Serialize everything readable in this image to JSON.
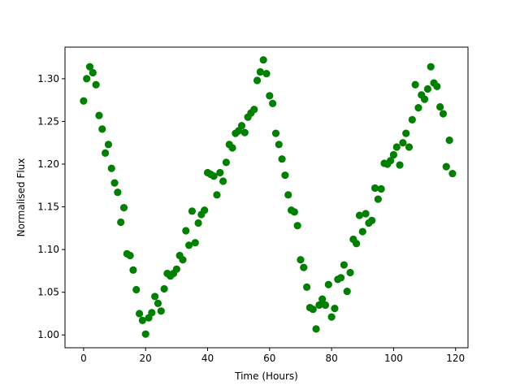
{
  "colors": {
    "marker": "#008000",
    "axis": "#000000",
    "background": "#ffffff"
  },
  "chart_data": {
    "type": "scatter",
    "title": "",
    "xlabel": "Time (Hours)",
    "ylabel": "Normalised Flux",
    "xlim": [
      -6,
      124
    ],
    "ylim": [
      0.985,
      1.337
    ],
    "grid": false,
    "legend": "none",
    "x_ticks": [
      0,
      20,
      40,
      60,
      80,
      100,
      120
    ],
    "x_tick_labels": [
      "0",
      "20",
      "40",
      "60",
      "80",
      "100",
      "120"
    ],
    "y_ticks": [
      1.0,
      1.05,
      1.1,
      1.15,
      1.2,
      1.25,
      1.3
    ],
    "y_tick_labels": [
      "1.00",
      "1.05",
      "1.10",
      "1.15",
      "1.20",
      "1.25",
      "1.30"
    ],
    "series": [
      {
        "marker": "circle",
        "color": "#008000",
        "points": [
          [
            0,
            1.274
          ],
          [
            1,
            1.3
          ],
          [
            2,
            1.314
          ],
          [
            3,
            1.307
          ],
          [
            4,
            1.293
          ],
          [
            5,
            1.257
          ],
          [
            6,
            1.241
          ],
          [
            7,
            1.213
          ],
          [
            8,
            1.223
          ],
          [
            9,
            1.195
          ],
          [
            10,
            1.178
          ],
          [
            11,
            1.167
          ],
          [
            12,
            1.132
          ],
          [
            13,
            1.149
          ],
          [
            14,
            1.095
          ],
          [
            15,
            1.093
          ],
          [
            16,
            1.076
          ],
          [
            17,
            1.053
          ],
          [
            18,
            1.025
          ],
          [
            19,
            1.017
          ],
          [
            20,
            1.001
          ],
          [
            21,
            1.02
          ],
          [
            22,
            1.026
          ],
          [
            23,
            1.045
          ],
          [
            24,
            1.037
          ],
          [
            25,
            1.028
          ],
          [
            26,
            1.054
          ],
          [
            27,
            1.072
          ],
          [
            28,
            1.069
          ],
          [
            29,
            1.072
          ],
          [
            30,
            1.077
          ],
          [
            31,
            1.093
          ],
          [
            32,
            1.088
          ],
          [
            33,
            1.122
          ],
          [
            34,
            1.105
          ],
          [
            35,
            1.145
          ],
          [
            36,
            1.108
          ],
          [
            37,
            1.131
          ],
          [
            38,
            1.141
          ],
          [
            39,
            1.146
          ],
          [
            40,
            1.19
          ],
          [
            41,
            1.188
          ],
          [
            42,
            1.186
          ],
          [
            43,
            1.164
          ],
          [
            44,
            1.19
          ],
          [
            45,
            1.18
          ],
          [
            46,
            1.202
          ],
          [
            47,
            1.223
          ],
          [
            48,
            1.219
          ],
          [
            49,
            1.236
          ],
          [
            50,
            1.239
          ],
          [
            51,
            1.245
          ],
          [
            52,
            1.237
          ],
          [
            53,
            1.255
          ],
          [
            54,
            1.26
          ],
          [
            55,
            1.264
          ],
          [
            56,
            1.298
          ],
          [
            57,
            1.308
          ],
          [
            58,
            1.322
          ],
          [
            59,
            1.306
          ],
          [
            60,
            1.28
          ],
          [
            61,
            1.271
          ],
          [
            62,
            1.236
          ],
          [
            63,
            1.223
          ],
          [
            64,
            1.206
          ],
          [
            65,
            1.187
          ],
          [
            66,
            1.164
          ],
          [
            67,
            1.146
          ],
          [
            68,
            1.144
          ],
          [
            69,
            1.128
          ],
          [
            70,
            1.088
          ],
          [
            71,
            1.079
          ],
          [
            72,
            1.056
          ],
          [
            73,
            1.032
          ],
          [
            74,
            1.03
          ],
          [
            75,
            1.007
          ],
          [
            76,
            1.035
          ],
          [
            77,
            1.042
          ],
          [
            78,
            1.035
          ],
          [
            79,
            1.059
          ],
          [
            80,
            1.021
          ],
          [
            81,
            1.031
          ],
          [
            82,
            1.065
          ],
          [
            83,
            1.067
          ],
          [
            84,
            1.082
          ],
          [
            85,
            1.051
          ],
          [
            86,
            1.073
          ],
          [
            87,
            1.112
          ],
          [
            88,
            1.107
          ],
          [
            89,
            1.14
          ],
          [
            90,
            1.121
          ],
          [
            91,
            1.142
          ],
          [
            92,
            1.131
          ],
          [
            93,
            1.134
          ],
          [
            94,
            1.172
          ],
          [
            95,
            1.159
          ],
          [
            96,
            1.171
          ],
          [
            97,
            1.201
          ],
          [
            98,
            1.2
          ],
          [
            99,
            1.204
          ],
          [
            100,
            1.211
          ],
          [
            101,
            1.22
          ],
          [
            102,
            1.199
          ],
          [
            103,
            1.225
          ],
          [
            104,
            1.236
          ],
          [
            105,
            1.22
          ],
          [
            106,
            1.252
          ],
          [
            107,
            1.293
          ],
          [
            108,
            1.266
          ],
          [
            109,
            1.281
          ],
          [
            110,
            1.276
          ],
          [
            111,
            1.288
          ],
          [
            112,
            1.314
          ],
          [
            113,
            1.295
          ],
          [
            114,
            1.291
          ],
          [
            115,
            1.267
          ],
          [
            116,
            1.259
          ],
          [
            117,
            1.197
          ],
          [
            118,
            1.228
          ],
          [
            119,
            1.189
          ]
        ]
      }
    ]
  }
}
